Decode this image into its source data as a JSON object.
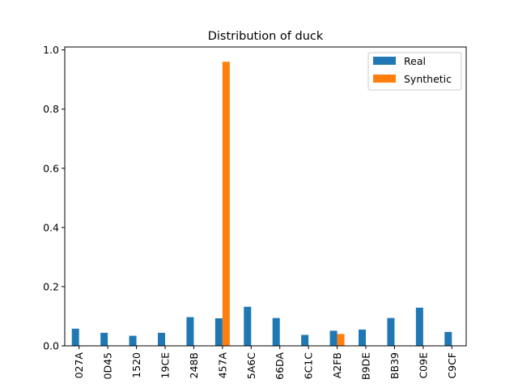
{
  "chart_data": {
    "type": "bar",
    "title": "Distribution of duck",
    "xlabel": "",
    "ylabel": "",
    "categories": [
      "027A",
      "0D45",
      "1520",
      "19CE",
      "248B",
      "457A",
      "5A6C",
      "66DA",
      "6C1C",
      "A2FB",
      "B9DE",
      "BB39",
      "C09E",
      "C9CF"
    ],
    "series": [
      {
        "name": "Real",
        "color": "#1f77b4",
        "values": [
          0.058,
          0.044,
          0.034,
          0.044,
          0.097,
          0.093,
          0.132,
          0.094,
          0.037,
          0.051,
          0.055,
          0.094,
          0.129,
          0.047
        ]
      },
      {
        "name": "Synthetic",
        "color": "#ff7f0e",
        "values": [
          0,
          0,
          0,
          0,
          0,
          0.96,
          0,
          0,
          0,
          0.04,
          0,
          0,
          0,
          0
        ]
      }
    ],
    "ylim": [
      0,
      1.01
    ],
    "yticks": [
      "0.0",
      "0.2",
      "0.4",
      "0.6",
      "0.8",
      "1.0"
    ],
    "grid": false,
    "legend_position": "top-right"
  }
}
